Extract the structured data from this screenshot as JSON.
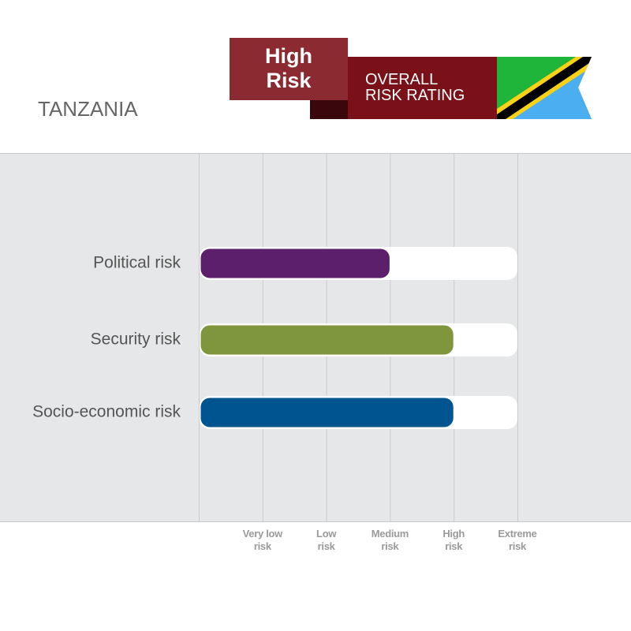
{
  "header": {
    "country": "TANZANIA",
    "rating": "High\nRisk",
    "rating_caption": "OVERALL\nRISK RATING"
  },
  "chart_data": {
    "type": "bar",
    "orientation": "horizontal",
    "categories": [
      "Political risk",
      "Security risk",
      "Socio-economic risk"
    ],
    "values": [
      3,
      4,
      4
    ],
    "colors": [
      "#5c1f6b",
      "#80963c",
      "#005490"
    ],
    "xlim": [
      0,
      5
    ],
    "xticks": [
      {
        "value": 1,
        "label": "Very low\nrisk"
      },
      {
        "value": 2,
        "label": "Low\nrisk"
      },
      {
        "value": 3,
        "label": "Medium\nrisk"
      },
      {
        "value": 4,
        "label": "High\nrisk"
      },
      {
        "value": 5,
        "label": "Extreme\nrisk"
      }
    ],
    "grid": true
  }
}
